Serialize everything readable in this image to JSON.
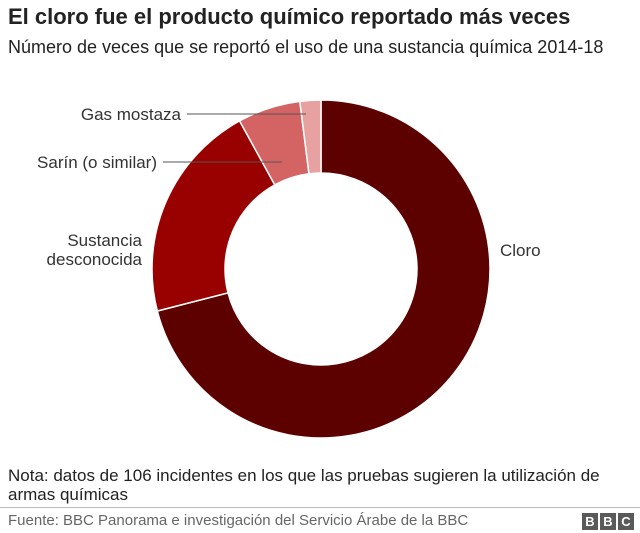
{
  "header": {
    "title": "El cloro fue el producto químico reportado más veces",
    "subtitle": "Número de veces que se reportó el uso de una sustancia química 2014-18"
  },
  "footer": {
    "note": "Nota: datos de 106 incidentes en los que las pruebas sugieren la utilización de armas químicas",
    "source": "Fuente: BBC Panorama e investigación del Servicio Árabe de la BBC",
    "logo_letters": [
      "B",
      "B",
      "C"
    ]
  },
  "chart_data": {
    "type": "pie",
    "style": "donut",
    "title": "El cloro fue el producto químico reportado más veces",
    "subtitle": "Número de veces que se reportó el uso de una sustancia química 2014-18",
    "series": [
      {
        "values": [
          {
            "label": "Cloro",
            "value": 71,
            "color": "#5c0000"
          },
          {
            "label": "Sustancia desconocida",
            "value": 21,
            "color": "#990000"
          },
          {
            "label": "Sarín (o similar)",
            "value": 6,
            "color": "#d46464"
          },
          {
            "label": "Gas mostaza",
            "value": 2,
            "color": "#e8a1a1"
          }
        ]
      }
    ],
    "legend": "direct labels"
  }
}
